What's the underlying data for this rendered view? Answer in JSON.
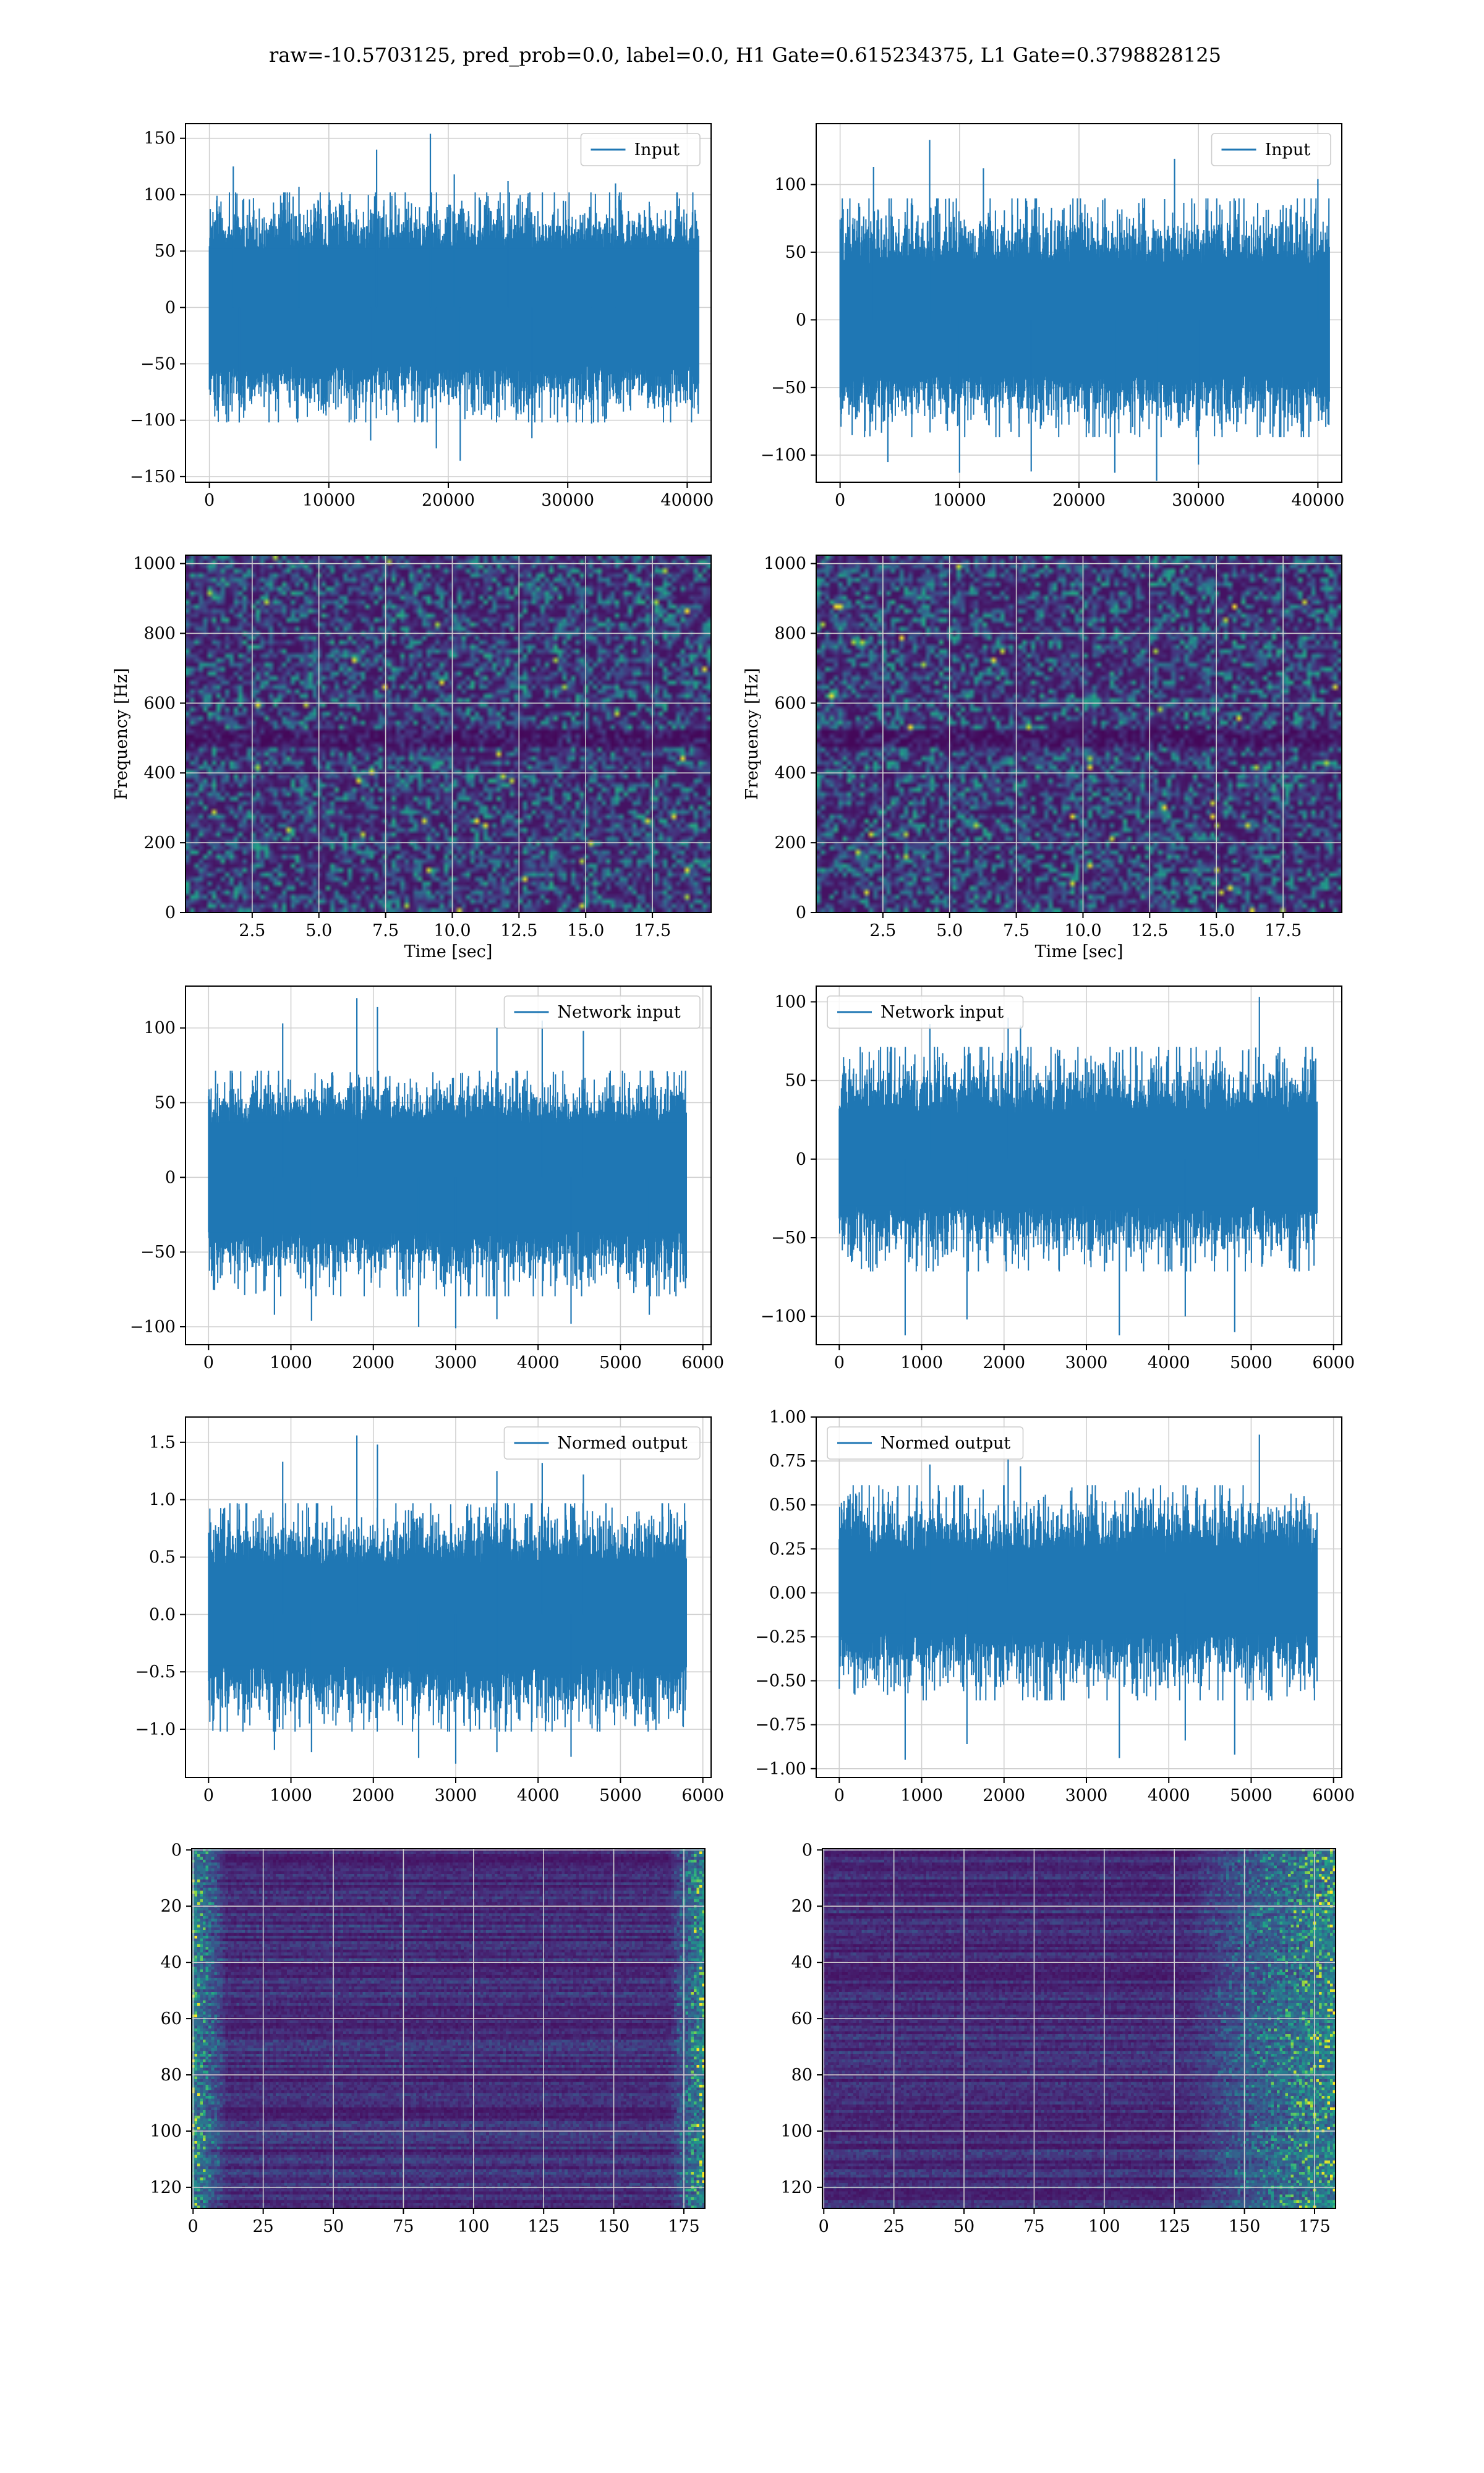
{
  "suptitle": "raw=-10.5703125, pred_prob=0.0, label=0.0, H1 Gate=0.615234375, L1 Gate=0.3798828125",
  "colors": {
    "line": "#1f77b4",
    "grid": "#d0d0d0",
    "viridis": [
      "#440154",
      "#46327e",
      "#365c8d",
      "#277f8e",
      "#1fa187",
      "#4ac16d",
      "#a0da39",
      "#fde725"
    ]
  },
  "chart_data": [
    {
      "type": "line",
      "id": "input-h1",
      "legend": "Input",
      "legend_loc": "upper right",
      "xlim": [
        -2000,
        42000
      ],
      "ylim": [
        -155,
        163
      ],
      "xticks": [
        0,
        10000,
        20000,
        30000,
        40000
      ],
      "yticks": [
        -150,
        -100,
        -50,
        0,
        50,
        100,
        150
      ],
      "x_range": [
        0,
        40960
      ],
      "band": [
        -50,
        50
      ],
      "envelope": [
        -100,
        100
      ],
      "spikes": [
        [
          2000,
          125
        ],
        [
          7500,
          107
        ],
        [
          14000,
          140
        ],
        [
          18500,
          154
        ],
        [
          20500,
          118
        ],
        [
          25000,
          112
        ],
        [
          34000,
          110
        ],
        [
          2500,
          -102
        ],
        [
          13500,
          -118
        ],
        [
          19000,
          -125
        ],
        [
          21000,
          -136
        ],
        [
          27000,
          -116
        ],
        [
          32000,
          -103
        ]
      ],
      "grid": true
    },
    {
      "type": "line",
      "id": "input-l1",
      "legend": "Input",
      "legend_loc": "upper right",
      "xlim": [
        -2000,
        42000
      ],
      "ylim": [
        -120,
        145
      ],
      "xticks": [
        0,
        10000,
        20000,
        30000,
        40000
      ],
      "yticks": [
        -100,
        -50,
        0,
        50,
        100
      ],
      "x_range": [
        0,
        40960
      ],
      "band": [
        -40,
        40
      ],
      "envelope": [
        -85,
        88
      ],
      "spikes": [
        [
          2800,
          113
        ],
        [
          7500,
          133
        ],
        [
          12000,
          112
        ],
        [
          28000,
          119
        ],
        [
          40000,
          104
        ],
        [
          4000,
          -105
        ],
        [
          10000,
          -113
        ],
        [
          16000,
          -112
        ],
        [
          23000,
          -113
        ],
        [
          26500,
          -119
        ],
        [
          30000,
          -107
        ]
      ],
      "grid": true
    },
    {
      "type": "heatmap",
      "id": "spectrogram-h1",
      "xlabel": "Time [sec]",
      "ylabel": "Frequency [Hz]",
      "xlim": [
        0,
        19.7
      ],
      "ylim": [
        0,
        1024
      ],
      "xticks": [
        2.5,
        5.0,
        7.5,
        10.0,
        12.5,
        15.0,
        17.5
      ],
      "xtick_labels": [
        "2.5",
        "5.0",
        "7.5",
        "10.0",
        "12.5",
        "15.0",
        "17.5"
      ],
      "yticks": [
        0,
        200,
        400,
        600,
        800,
        1000
      ],
      "rows": 80,
      "cols": 120,
      "seed": 11,
      "dark_band": [
        470,
        520
      ],
      "grid": true
    },
    {
      "type": "heatmap",
      "id": "spectrogram-l1",
      "xlabel": "Time [sec]",
      "ylabel": "Frequency [Hz]",
      "xlim": [
        0,
        19.7
      ],
      "ylim": [
        0,
        1024
      ],
      "xticks": [
        2.5,
        5.0,
        7.5,
        10.0,
        12.5,
        15.0,
        17.5
      ],
      "xtick_labels": [
        "2.5",
        "5.0",
        "7.5",
        "10.0",
        "12.5",
        "15.0",
        "17.5"
      ],
      "yticks": [
        0,
        200,
        400,
        600,
        800,
        1000
      ],
      "rows": 80,
      "cols": 120,
      "seed": 23,
      "dark_band": [
        470,
        520
      ],
      "grid": true
    },
    {
      "type": "line",
      "id": "network-input-h1",
      "legend": "Network input",
      "legend_loc": "upper right",
      "xlim": [
        -280,
        6100
      ],
      "ylim": [
        -112,
        128
      ],
      "xticks": [
        0,
        1000,
        2000,
        3000,
        4000,
        5000,
        6000
      ],
      "yticks": [
        -100,
        -50,
        0,
        50,
        100
      ],
      "x_range": [
        0,
        5800
      ],
      "band": [
        -35,
        35
      ],
      "envelope": [
        -78,
        70
      ],
      "spikes": [
        [
          900,
          103
        ],
        [
          1800,
          120
        ],
        [
          2050,
          114
        ],
        [
          3500,
          100
        ],
        [
          4050,
          105
        ],
        [
          4550,
          98
        ],
        [
          800,
          -92
        ],
        [
          1250,
          -96
        ],
        [
          2550,
          -100
        ],
        [
          3000,
          -101
        ],
        [
          3500,
          -95
        ],
        [
          4400,
          -98
        ],
        [
          5350,
          -92
        ]
      ],
      "grid": true
    },
    {
      "type": "line",
      "id": "network-input-l1",
      "legend": "Network input",
      "legend_loc": "upper left",
      "xlim": [
        -280,
        6100
      ],
      "ylim": [
        -118,
        110
      ],
      "xticks": [
        0,
        1000,
        2000,
        3000,
        4000,
        5000,
        6000
      ],
      "yticks": [
        -100,
        -50,
        0,
        50,
        100
      ],
      "x_range": [
        0,
        5800
      ],
      "band": [
        -28,
        28
      ],
      "envelope": [
        -70,
        70
      ],
      "spikes": [
        [
          1100,
          86
        ],
        [
          2050,
          90
        ],
        [
          5100,
          103
        ],
        [
          2200,
          85
        ],
        [
          800,
          -112
        ],
        [
          1550,
          -102
        ],
        [
          3400,
          -112
        ],
        [
          4200,
          -100
        ],
        [
          4800,
          -110
        ]
      ],
      "grid": true
    },
    {
      "type": "line",
      "id": "normed-output-h1",
      "legend": "Normed output",
      "legend_loc": "upper right",
      "xlim": [
        -280,
        6100
      ],
      "ylim": [
        -1.42,
        1.72
      ],
      "xticks": [
        0,
        1000,
        2000,
        3000,
        4000,
        5000,
        6000
      ],
      "yticks": [
        -1.0,
        -0.5,
        0.0,
        0.5,
        1.0,
        1.5
      ],
      "ytick_labels": [
        "−1.0",
        "−0.5",
        "0.0",
        "0.5",
        "1.0",
        "1.5"
      ],
      "x_range": [
        0,
        5800
      ],
      "band": [
        -0.42,
        0.42
      ],
      "envelope": [
        -1.0,
        0.95
      ],
      "spikes": [
        [
          900,
          1.33
        ],
        [
          1800,
          1.56
        ],
        [
          2050,
          1.48
        ],
        [
          3500,
          1.25
        ],
        [
          4050,
          1.32
        ],
        [
          4550,
          1.22
        ],
        [
          800,
          -1.18
        ],
        [
          1250,
          -1.2
        ],
        [
          2550,
          -1.25
        ],
        [
          3000,
          -1.3
        ],
        [
          3500,
          -1.2
        ],
        [
          4400,
          -1.24
        ]
      ],
      "grid": true
    },
    {
      "type": "line",
      "id": "normed-output-l1",
      "legend": "Normed output",
      "legend_loc": "upper left",
      "xlim": [
        -280,
        6100
      ],
      "ylim": [
        -1.05,
        1.0
      ],
      "xticks": [
        0,
        1000,
        2000,
        3000,
        4000,
        5000,
        6000
      ],
      "yticks": [
        -1.0,
        -0.75,
        -0.5,
        -0.25,
        0.0,
        0.25,
        0.5,
        0.75,
        1.0
      ],
      "ytick_labels": [
        "−1.00",
        "−0.75",
        "−0.50",
        "−0.25",
        "0.00",
        "0.25",
        "0.50",
        "0.75",
        "1.00"
      ],
      "x_range": [
        0,
        5800
      ],
      "band": [
        -0.22,
        0.22
      ],
      "envelope": [
        -0.6,
        0.6
      ],
      "spikes": [
        [
          1100,
          0.73
        ],
        [
          2050,
          0.76
        ],
        [
          5100,
          0.9
        ],
        [
          2200,
          0.72
        ],
        [
          800,
          -0.95
        ],
        [
          1550,
          -0.86
        ],
        [
          3400,
          -0.94
        ],
        [
          4200,
          -0.84
        ],
        [
          4800,
          -0.92
        ]
      ],
      "grid": true
    },
    {
      "type": "heatmap",
      "id": "features-h1",
      "xlim": [
        -0.5,
        182.5
      ],
      "ylim": [
        127.5,
        -0.5
      ],
      "inverted_y": true,
      "xticks": [
        0,
        25,
        50,
        75,
        100,
        125,
        150,
        175
      ],
      "yticks": [
        0,
        20,
        40,
        60,
        80,
        100,
        120
      ],
      "rows": 128,
      "cols": 183,
      "seed": 37,
      "bright_cols": [
        [
          0,
          12
        ],
        [
          170,
          182
        ]
      ],
      "grid": true
    },
    {
      "type": "heatmap",
      "id": "features-l1",
      "xlim": [
        -0.5,
        182.5
      ],
      "ylim": [
        127.5,
        -0.5
      ],
      "inverted_y": true,
      "xticks": [
        0,
        25,
        50,
        75,
        100,
        125,
        150,
        175
      ],
      "yticks": [
        0,
        20,
        40,
        60,
        80,
        100,
        120
      ],
      "rows": 128,
      "cols": 183,
      "seed": 53,
      "bright_cols": [
        [
          130,
          182
        ]
      ],
      "grid": true
    }
  ]
}
